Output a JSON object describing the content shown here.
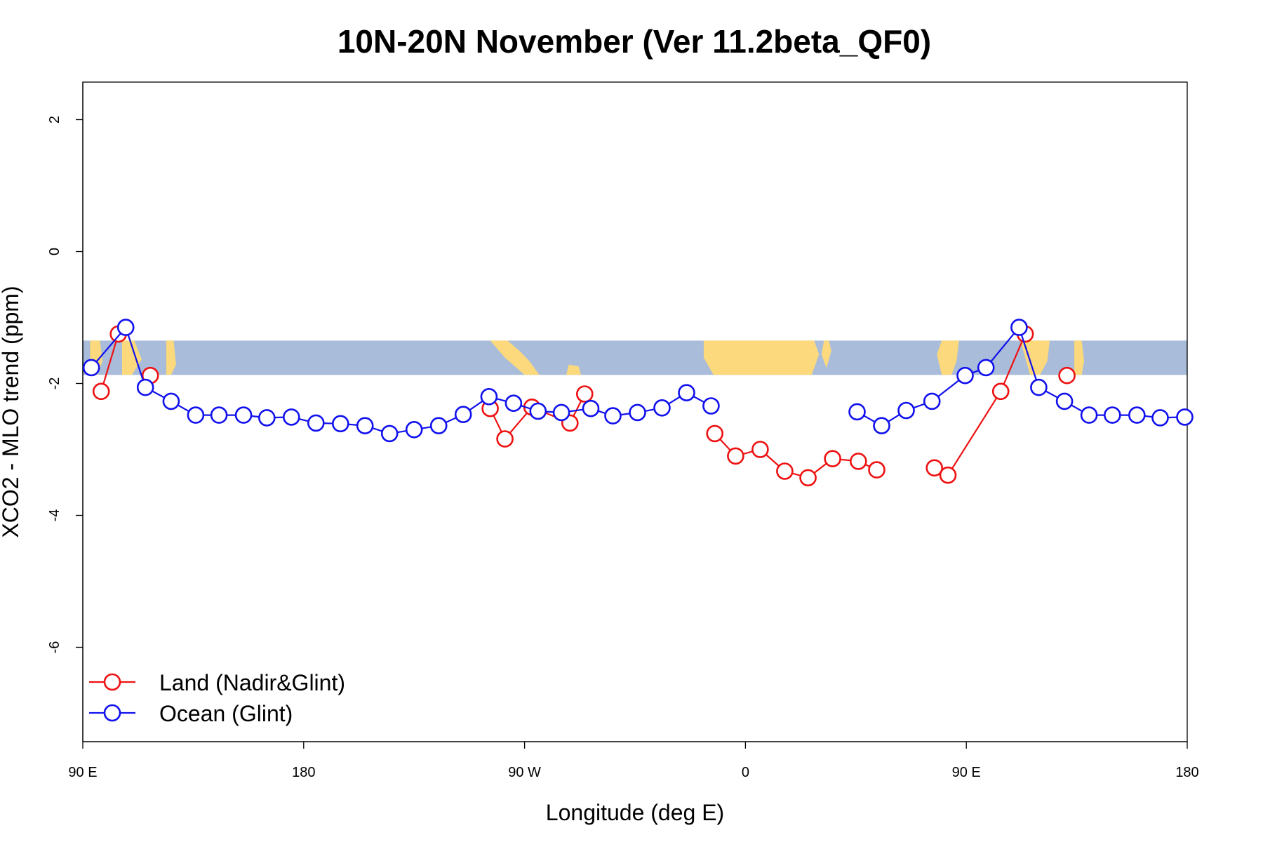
{
  "chart_data": {
    "type": "line",
    "title": "10N-20N November (Ver 11.2beta_QF0)",
    "xlabel": "Longitude (deg E)",
    "ylabel": "XCO2 - MLO trend (ppm)",
    "xlim": [
      90,
      540
    ],
    "ylim": [
      -7.5,
      2.5
    ],
    "x_ticks": [
      {
        "value": 90,
        "label": "90 E"
      },
      {
        "value": 180,
        "label": "180"
      },
      {
        "value": 270,
        "label": "90 W"
      },
      {
        "value": 360,
        "label": "0"
      },
      {
        "value": 450,
        "label": "90 E"
      },
      {
        "value": 540,
        "label": "180"
      }
    ],
    "y_ticks": [
      {
        "value": 2,
        "label": "2"
      },
      {
        "value": 0,
        "label": "0"
      },
      {
        "value": -2,
        "label": "-2"
      },
      {
        "value": -4,
        "label": "-4"
      },
      {
        "value": -6,
        "label": "-6"
      }
    ],
    "grid": false,
    "legend_position": "bottom-left",
    "map_band": {
      "ylim": [
        -1.87,
        -1.35
      ],
      "ocean_color": "#a9bcd9",
      "land_color": "#fbd97c"
    },
    "series": [
      {
        "name": "Land (Nadir&Glint)",
        "color": "#ee1111",
        "segments": [
          [
            [
              97.5,
              -2.12
            ],
            [
              104.5,
              -1.25
            ]
          ],
          [
            [
              117.5,
              -1.88
            ]
          ],
          [
            [
              256,
              -2.38
            ],
            [
              262,
              -2.84
            ],
            [
              273,
              -2.36
            ],
            [
              288.5,
              -2.6
            ],
            [
              294.5,
              -2.16
            ]
          ],
          [
            [
              347.5,
              -2.76
            ],
            [
              356,
              -3.1
            ],
            [
              366,
              -3.0
            ],
            [
              376,
              -3.33
            ],
            [
              385.5,
              -3.43
            ],
            [
              395.5,
              -3.14
            ],
            [
              406,
              -3.18
            ],
            [
              413.5,
              -3.31
            ]
          ],
          [
            [
              437,
              -3.28
            ],
            [
              442.5,
              -3.39
            ],
            [
              464,
              -2.12
            ],
            [
              474,
              -1.25
            ]
          ],
          [
            [
              491,
              -1.88
            ]
          ]
        ]
      },
      {
        "name": "Ocean (Glint)",
        "color": "#1111ee",
        "segments": [
          [
            [
              93.5,
              -1.76
            ],
            [
              107.5,
              -1.15
            ],
            [
              115.5,
              -2.06
            ],
            [
              126,
              -2.27
            ],
            [
              136,
              -2.48
            ],
            [
              145.5,
              -2.48
            ],
            [
              155.5,
              -2.48
            ],
            [
              165,
              -2.52
            ],
            [
              175,
              -2.51
            ],
            [
              185,
              -2.6
            ],
            [
              195,
              -2.61
            ],
            [
              205,
              -2.64
            ],
            [
              215,
              -2.76
            ],
            [
              225,
              -2.7
            ],
            [
              235,
              -2.64
            ],
            [
              245,
              -2.47
            ],
            [
              255.5,
              -2.2
            ],
            [
              265.5,
              -2.3
            ],
            [
              275.5,
              -2.42
            ],
            [
              285,
              -2.44
            ],
            [
              297,
              -2.38
            ],
            [
              306,
              -2.49
            ],
            [
              316,
              -2.44
            ],
            [
              326,
              -2.37
            ],
            [
              336,
              -2.14
            ],
            [
              346,
              -2.34
            ]
          ],
          [
            [
              405.5,
              -2.43
            ],
            [
              415.5,
              -2.64
            ],
            [
              425.5,
              -2.41
            ],
            [
              436,
              -2.27
            ],
            [
              449.5,
              -1.88
            ],
            [
              458,
              -1.76
            ],
            [
              471.5,
              -1.15
            ],
            [
              479.5,
              -2.06
            ],
            [
              490,
              -2.27
            ],
            [
              500,
              -2.48
            ],
            [
              509.5,
              -2.48
            ],
            [
              519.5,
              -2.48
            ],
            [
              529,
              -2.52
            ],
            [
              539,
              -2.51
            ]
          ]
        ]
      }
    ]
  }
}
